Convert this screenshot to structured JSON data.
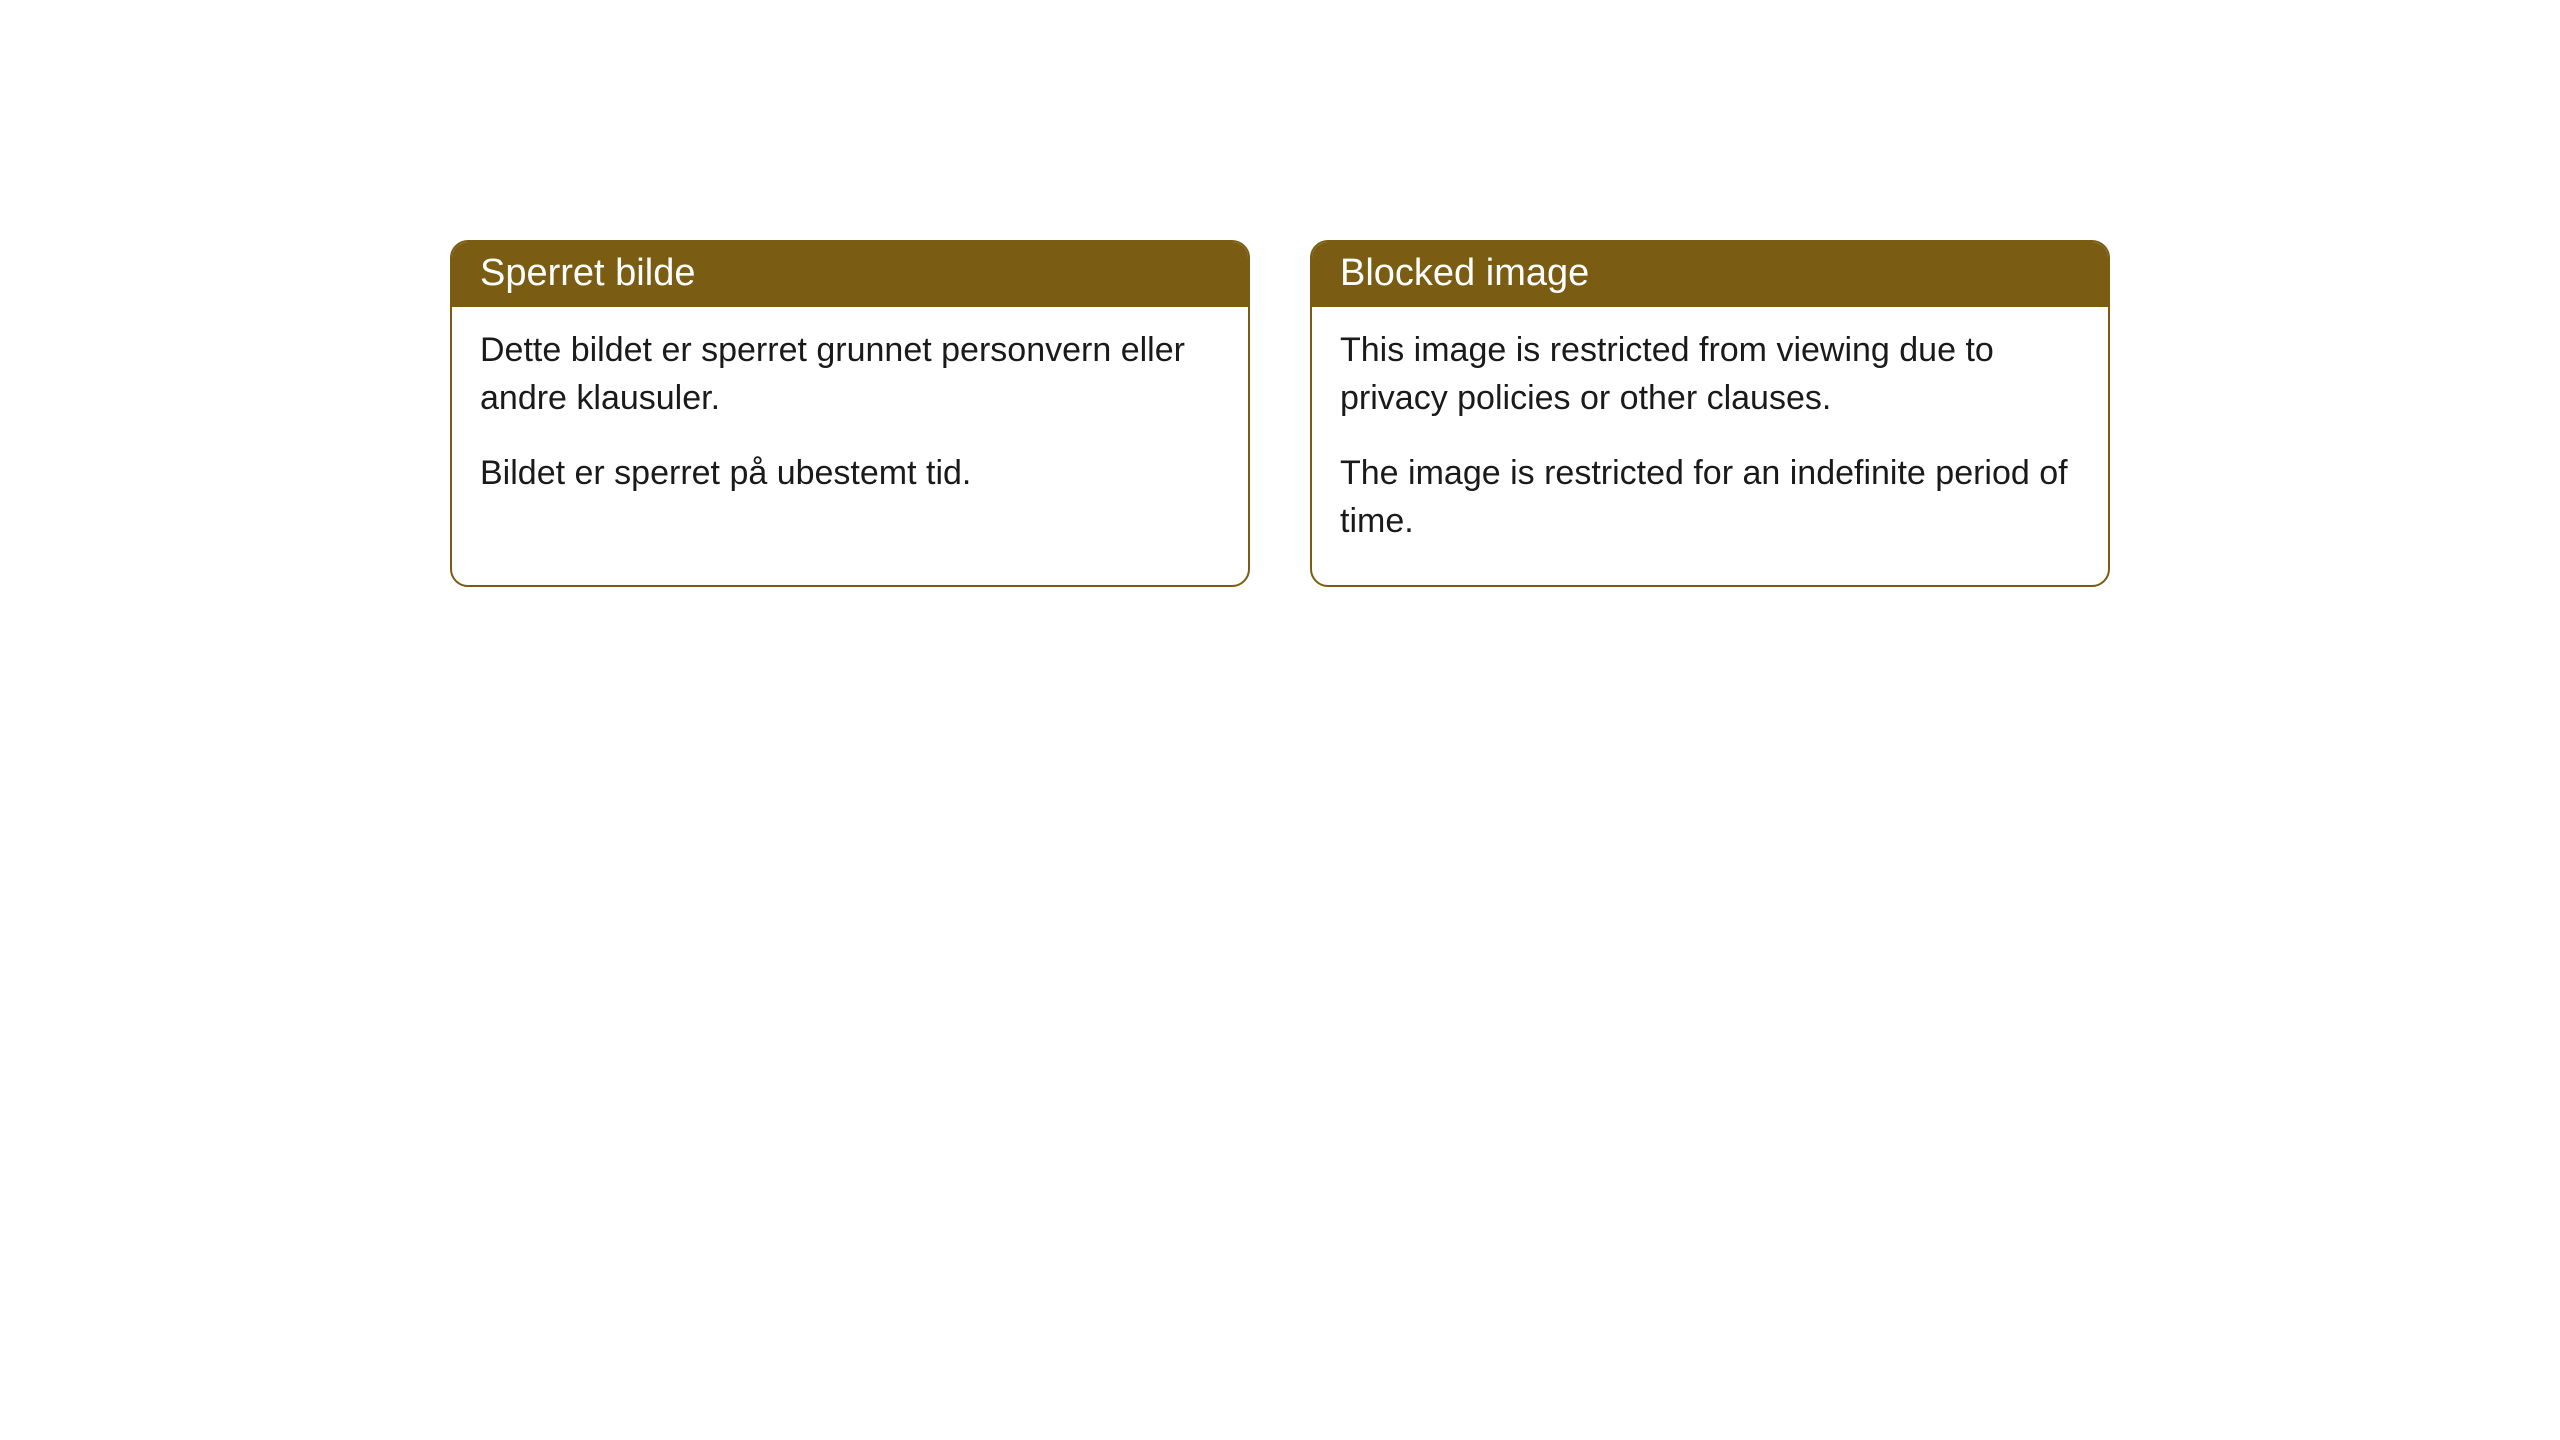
{
  "colors": {
    "header_bg": "#7a5c13",
    "header_text": "#ffffff",
    "border": "#7a5c13",
    "body_bg": "#ffffff",
    "body_text": "#1a1a1a"
  },
  "typography": {
    "header_fontsize": 38,
    "body_fontsize": 34,
    "font_family": "Arial, Helvetica, sans-serif"
  },
  "layout": {
    "border_radius": 18,
    "card_gap": 60
  },
  "cards": [
    {
      "title": "Sperret bilde",
      "para1": "Dette bildet er sperret grunnet personvern eller andre klausuler.",
      "para2": "Bildet er sperret på ubestemt tid."
    },
    {
      "title": "Blocked image",
      "para1": "This image is restricted from viewing due to privacy policies or other clauses.",
      "para2": "The image is restricted for an indefinite period of time."
    }
  ]
}
